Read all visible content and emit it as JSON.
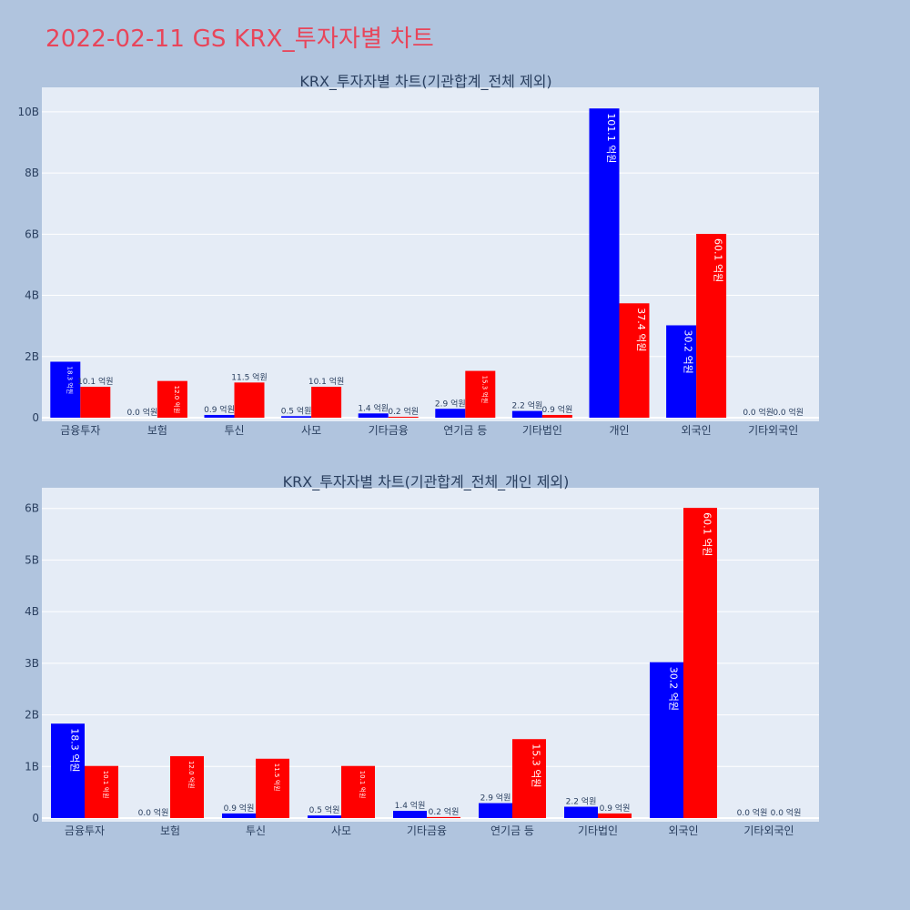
{
  "page_title": "2022-02-11 GS KRX_투자자별 차트",
  "colors": {
    "background": "#b0c4de",
    "plot_bg": "#e5ecf6",
    "title": "#e8455a",
    "buy": "#0000ff",
    "sell": "#ff0000"
  },
  "chart_data": [
    {
      "type": "bar",
      "title": "KRX_투자자별 차트(기관합계_전체 제외)",
      "categories": [
        "금융투자",
        "보험",
        "투신",
        "사모",
        "기타금융",
        "연기금 등",
        "기타법인",
        "개인",
        "외국인",
        "기타외국인"
      ],
      "series": [
        {
          "color": "#0000ff",
          "values": [
            1830000000,
            0,
            90000000,
            50000000,
            140000000,
            290000000,
            220000000,
            10110000000,
            3020000000,
            0
          ],
          "labels": [
            "18.3 억원",
            "0.0 억원",
            "0.9 억원",
            "0.5 억원",
            "1.4 억원",
            "2.9 억원",
            "2.2 억원",
            "101.1 억원",
            "30.2 억원",
            "0.0 억원"
          ]
        },
        {
          "color": "#ff0000",
          "values": [
            1010000000,
            1200000000,
            1150000000,
            1010000000,
            20000000,
            1530000000,
            90000000,
            3740000000,
            6010000000,
            0
          ],
          "labels": [
            "10.1 억원",
            "12.0 억원",
            "11.5 억원",
            "10.1 억원",
            "0.2 억원",
            "15.3 억원",
            "0.9 억원",
            "37.4 억원",
            "60.1 억원",
            "0.0 억원"
          ]
        }
      ],
      "yticks": [
        "0",
        "2B",
        "4B",
        "6B",
        "8B",
        "10B"
      ],
      "ylim": [
        0,
        10800000000
      ],
      "grid": true
    },
    {
      "type": "bar",
      "title": "KRX_투자자별 차트(기관합계_전체_개인 제외)",
      "categories": [
        "금융투자",
        "보험",
        "투신",
        "사모",
        "기타금융",
        "연기금 등",
        "기타법인",
        "외국인",
        "기타외국인"
      ],
      "series": [
        {
          "color": "#0000ff",
          "values": [
            1830000000,
            0,
            90000000,
            50000000,
            140000000,
            290000000,
            220000000,
            3020000000,
            0
          ],
          "labels": [
            "18.3 억원",
            "0.0 억원",
            "0.9 억원",
            "0.5 억원",
            "1.4 억원",
            "2.9 억원",
            "2.2 억원",
            "30.2 억원",
            "0.0 억원"
          ]
        },
        {
          "color": "#ff0000",
          "values": [
            1010000000,
            1200000000,
            1150000000,
            1010000000,
            20000000,
            1530000000,
            90000000,
            6010000000,
            0
          ],
          "labels": [
            "10.1 억원",
            "12.0 억원",
            "11.5 억원",
            "10.1 억원",
            "0.2 억원",
            "15.3 억원",
            "0.9 억원",
            "60.1 억원",
            "0.0 억원"
          ]
        }
      ],
      "yticks": [
        "0",
        "1B",
        "2B",
        "3B",
        "4B",
        "5B",
        "6B"
      ],
      "ylim": [
        0,
        6400000000
      ],
      "grid": true
    }
  ]
}
